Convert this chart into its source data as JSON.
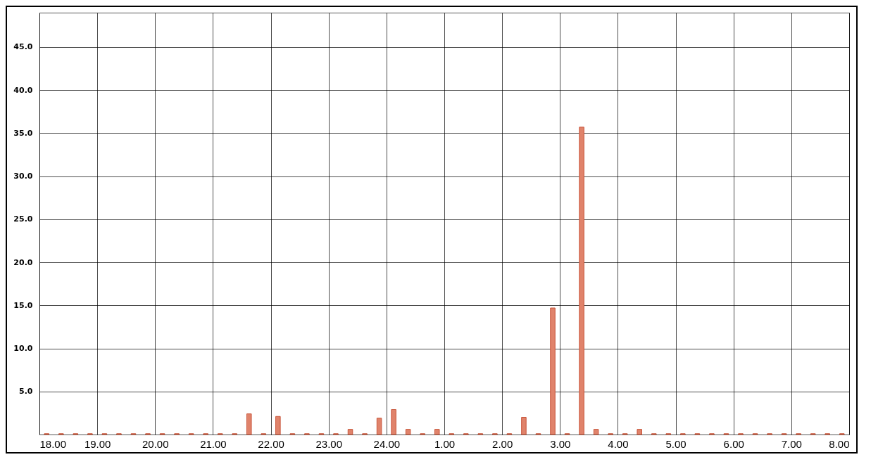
{
  "chart_data": {
    "type": "histogram",
    "bins": [
      "--01-01T18:00",
      "--01-01T18:15",
      "--01-01T18:30",
      "--01-01T18:45",
      "--01-01T19:00",
      "--01-01T19:15",
      "--01-01T19:30",
      "--01-01T19:45",
      "--01-01T20:00",
      "--01-01T20:15",
      "--01-01T20:30",
      "--01-01T20:45",
      "--01-01T21:00",
      "--01-01T21:15",
      "--01-01T21:30",
      "--01-01T21:45",
      "--01-01T22:00",
      "--01-01T22:15",
      "--01-01T22:30",
      "--01-01T22:45",
      "--01-01T23:00",
      "--01-01T23:15",
      "--01-01T23:30",
      "--01-01T23:45",
      "--01-02T00:00",
      "--01-02T00:15",
      "--01-02T00:30",
      "--01-02T00:45",
      "--01-02T01:00",
      "--01-02T01:15",
      "--01-02T01:30",
      "--01-02T01:45",
      "--01-02T02:00",
      "--01-02T02:15",
      "--01-02T02:30",
      "--01-02T02:45",
      "--01-02T03:00",
      "--01-02T03:15",
      "--01-02T03:30",
      "--01-02T03:45",
      "--01-02T04:00",
      "--01-02T04:15",
      "--01-02T04:30",
      "--01-02T04:45",
      "--01-02T05:00",
      "--01-02T05:15",
      "--01-02T05:30",
      "--01-02T05:45",
      "--01-02T06:00",
      "--01-02T06:15",
      "--01-02T06:30",
      "--01-02T06:45",
      "--01-02T07:00",
      "--01-02T07:15",
      "--01-02T07:30",
      "--01-02T07:45",
      "--01-02T08:00"
    ],
    "values": [
      0.1,
      0.1,
      0.1,
      0.1,
      0.1,
      0.1,
      0.1,
      0.1,
      0.1,
      0.1,
      0.1,
      0.1,
      0.1,
      0.1,
      2.4,
      0.1,
      2.1,
      0.1,
      0.1,
      0.1,
      0.1,
      0.6,
      0.1,
      1.9,
      2.9,
      0.6,
      0.1,
      0.6,
      0.1,
      0.1,
      0.1,
      0.1,
      0.1,
      2.0,
      0.1,
      14.7,
      0.1,
      35.7,
      0.6,
      0.1,
      0.1,
      0.6,
      0.1,
      0.1,
      0.1,
      0.1,
      0.1,
      0.1,
      0.1,
      0.1,
      0.1,
      0.1,
      0.1,
      0.1,
      0.1,
      0.1
    ],
    "color": "#e0836b",
    "xlim": [
      "--01-01T18:00",
      "--01-02T08:00"
    ],
    "xticks": [
      {
        "value": "--01-01T18:00",
        "label": "18.00"
      },
      {
        "value": "--01-01T19:00",
        "label": "19.00"
      },
      {
        "value": "--01-01T20:00",
        "label": "20.00"
      },
      {
        "value": "--01-01T21:00",
        "label": "21.00"
      },
      {
        "value": "--01-01T22:00",
        "label": "22.00"
      },
      {
        "value": "--01-01T23:00",
        "label": "23.00"
      },
      {
        "value": "--01-02T00:00",
        "label": "24.00"
      },
      {
        "value": "--01-02T01:00",
        "label": "1.00"
      },
      {
        "value": "--01-02T02:00",
        "label": "2.00"
      },
      {
        "value": "--01-02T03:00",
        "label": "3.00"
      },
      {
        "value": "--01-02T04:00",
        "label": "4.00"
      },
      {
        "value": "--01-02T05:00",
        "label": "5.00"
      },
      {
        "value": "--01-02T06:00",
        "label": "6.00"
      },
      {
        "value": "--01-02T07:00",
        "label": "7.00"
      },
      {
        "value": "--01-02T08:00",
        "label": "8.00"
      }
    ],
    "ylim": [
      0,
      49
    ],
    "yticks": [
      {
        "value": 5,
        "label": "5.0"
      },
      {
        "value": 10,
        "label": "10.0"
      },
      {
        "value": 15,
        "label": "15.0"
      },
      {
        "value": 20,
        "label": "20.0"
      },
      {
        "value": 25,
        "label": "25.0"
      },
      {
        "value": 30,
        "label": "30.0"
      },
      {
        "value": 35,
        "label": "35.0"
      },
      {
        "value": 40,
        "label": "40.0"
      },
      {
        "value": 45,
        "label": "45.0"
      }
    ],
    "grid": true
  }
}
